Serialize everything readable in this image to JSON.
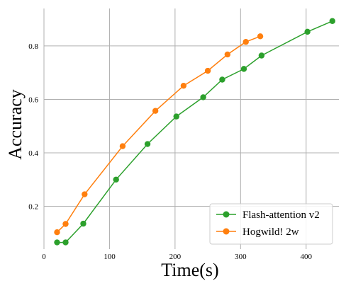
{
  "chart_data": {
    "type": "line",
    "xlabel": "Time(s)",
    "ylabel": "Accuracy",
    "xlim": [
      0,
      450
    ],
    "ylim": [
      0.04,
      0.94
    ],
    "x_ticks": [
      0,
      100,
      200,
      300,
      400
    ],
    "y_ticks": [
      0.2,
      0.4,
      0.6,
      0.8
    ],
    "grid": true,
    "legend_position": "bottom-right",
    "series": [
      {
        "name": "Flash-attention v2",
        "color": "#2ca02c",
        "x": [
          20,
          33,
          60,
          110,
          158,
          202,
          243,
          272,
          305,
          332,
          402,
          440
        ],
        "y": [
          0.065,
          0.065,
          0.135,
          0.3,
          0.433,
          0.536,
          0.608,
          0.674,
          0.714,
          0.764,
          0.853,
          0.893
        ]
      },
      {
        "name": "Hogwild! 2w",
        "color": "#ff7f0e",
        "x": [
          20,
          33,
          62,
          120,
          170,
          213,
          250,
          280,
          308,
          330
        ],
        "y": [
          0.103,
          0.134,
          0.245,
          0.425,
          0.557,
          0.651,
          0.707,
          0.768,
          0.815,
          0.836
        ]
      }
    ]
  }
}
